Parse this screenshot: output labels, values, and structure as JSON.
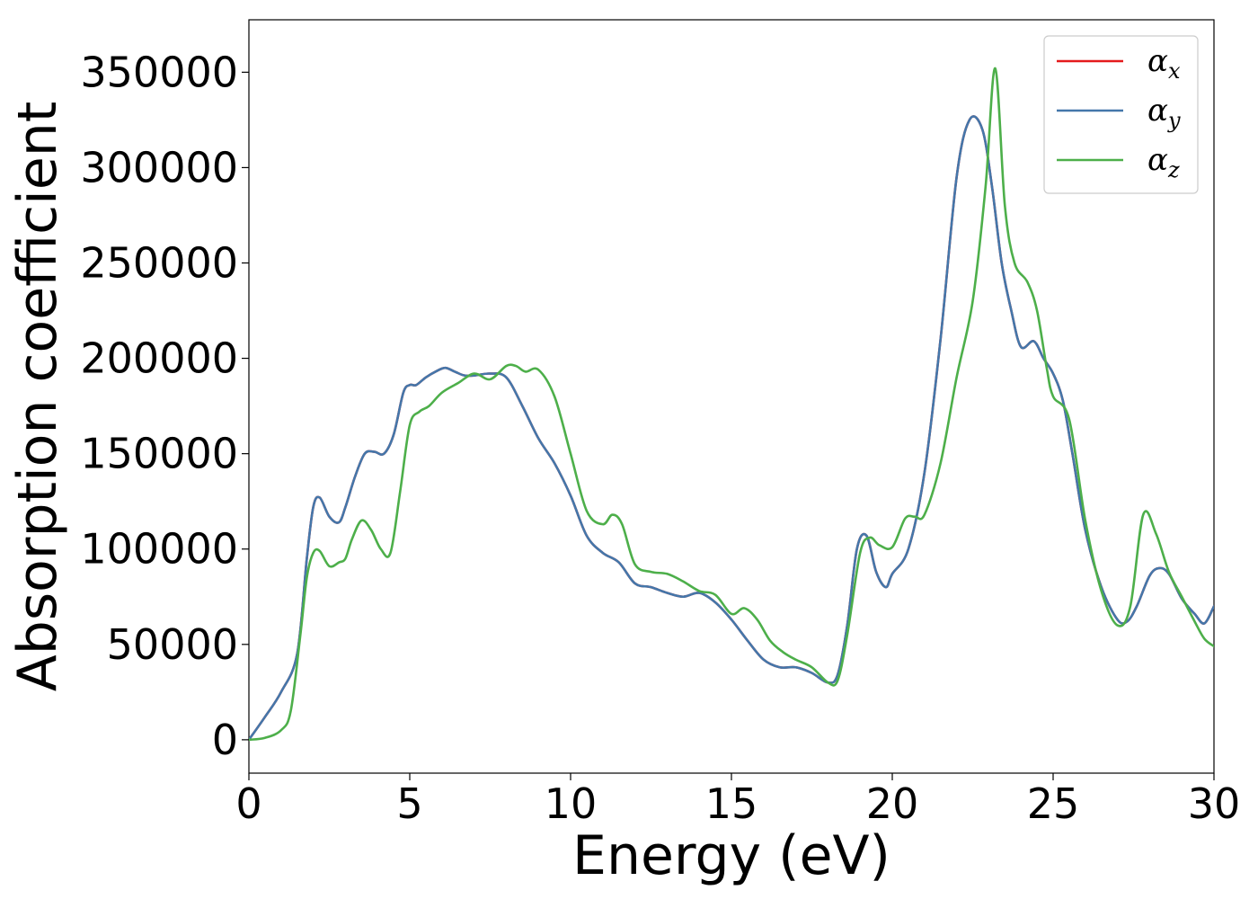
{
  "chart_data": {
    "type": "line",
    "title": "",
    "xlabel": "Energy (eV)",
    "ylabel": "Absorption coefficient",
    "xlim": [
      0,
      30
    ],
    "ylim": [
      -17500,
      377500
    ],
    "xticks": [
      0,
      5,
      10,
      15,
      20,
      25,
      30
    ],
    "xtick_labels": [
      "0",
      "5",
      "10",
      "15",
      "20",
      "25",
      "30"
    ],
    "yticks": [
      0,
      50000,
      100000,
      150000,
      200000,
      250000,
      300000,
      350000
    ],
    "ytick_labels": [
      "0",
      "50000",
      "100000",
      "150000",
      "200000",
      "250000",
      "300000",
      "350000"
    ],
    "grid": false,
    "legend_position": "top-right",
    "series": [
      {
        "name": "αx",
        "legend_base": "α",
        "legend_sub": "x",
        "color": "#e41a1c",
        "x": [
          0,
          0.5,
          1.0,
          1.5,
          1.8,
          2.0,
          2.2,
          2.5,
          2.8,
          3.0,
          3.3,
          3.6,
          3.9,
          4.2,
          4.5,
          4.8,
          5.0,
          5.2,
          5.5,
          5.8,
          6.1,
          6.4,
          6.7,
          7.0,
          7.5,
          8.0,
          8.5,
          9.0,
          9.5,
          10.0,
          10.5,
          11.0,
          11.5,
          12.0,
          12.5,
          13.0,
          13.5,
          14.0,
          14.5,
          15.0,
          15.5,
          16.0,
          16.5,
          17.0,
          17.5,
          18.0,
          18.3,
          18.6,
          18.9,
          19.2,
          19.5,
          19.8,
          20.0,
          20.5,
          21.0,
          21.5,
          22.0,
          22.4,
          22.8,
          23.1,
          23.4,
          23.7,
          24.0,
          24.4,
          24.7,
          25.0,
          25.3,
          25.6,
          26.0,
          26.5,
          27.0,
          27.3,
          27.6,
          28.0,
          28.3,
          28.6,
          29.0,
          29.4,
          29.7,
          30.0
        ],
        "values": [
          0,
          12000,
          25000,
          45000,
          95000,
          122000,
          127000,
          117000,
          114000,
          122000,
          138000,
          150000,
          151000,
          150000,
          160000,
          182000,
          186000,
          186000,
          190000,
          193000,
          195000,
          193000,
          191000,
          191000,
          192000,
          190000,
          175000,
          158000,
          145000,
          128000,
          107000,
          98000,
          93000,
          82000,
          80000,
          77000,
          75000,
          77000,
          72000,
          63000,
          52000,
          42000,
          38000,
          38000,
          35000,
          30000,
          34000,
          60000,
          100000,
          107000,
          88000,
          80000,
          87000,
          100000,
          140000,
          210000,
          295000,
          325000,
          320000,
          290000,
          250000,
          225000,
          206000,
          209000,
          200000,
          192000,
          178000,
          150000,
          110000,
          80000,
          63000,
          62000,
          70000,
          86000,
          90000,
          87000,
          74000,
          66000,
          61000,
          70000
        ]
      },
      {
        "name": "αy",
        "legend_base": "α",
        "legend_sub": "y",
        "color": "#4477aa",
        "x": [
          0,
          0.5,
          1.0,
          1.5,
          1.8,
          2.0,
          2.2,
          2.5,
          2.8,
          3.0,
          3.3,
          3.6,
          3.9,
          4.2,
          4.5,
          4.8,
          5.0,
          5.2,
          5.5,
          5.8,
          6.1,
          6.4,
          6.7,
          7.0,
          7.5,
          8.0,
          8.5,
          9.0,
          9.5,
          10.0,
          10.5,
          11.0,
          11.5,
          12.0,
          12.5,
          13.0,
          13.5,
          14.0,
          14.5,
          15.0,
          15.5,
          16.0,
          16.5,
          17.0,
          17.5,
          18.0,
          18.3,
          18.6,
          18.9,
          19.2,
          19.5,
          19.8,
          20.0,
          20.5,
          21.0,
          21.5,
          22.0,
          22.4,
          22.8,
          23.1,
          23.4,
          23.7,
          24.0,
          24.4,
          24.7,
          25.0,
          25.3,
          25.6,
          26.0,
          26.5,
          27.0,
          27.3,
          27.6,
          28.0,
          28.3,
          28.6,
          29.0,
          29.4,
          29.7,
          30.0
        ],
        "values": [
          0,
          12000,
          25000,
          45000,
          95000,
          122000,
          127000,
          117000,
          114000,
          122000,
          138000,
          150000,
          151000,
          150000,
          160000,
          182000,
          186000,
          186000,
          190000,
          193000,
          195000,
          193000,
          191000,
          191000,
          192000,
          190000,
          175000,
          158000,
          145000,
          128000,
          107000,
          98000,
          93000,
          82000,
          80000,
          77000,
          75000,
          77000,
          72000,
          63000,
          52000,
          42000,
          38000,
          38000,
          35000,
          30000,
          34000,
          60000,
          100000,
          107000,
          88000,
          80000,
          87000,
          100000,
          140000,
          210000,
          295000,
          325000,
          320000,
          290000,
          250000,
          225000,
          206000,
          209000,
          200000,
          192000,
          178000,
          150000,
          110000,
          80000,
          63000,
          62000,
          70000,
          86000,
          90000,
          87000,
          74000,
          66000,
          61000,
          70000
        ]
      },
      {
        "name": "αz",
        "legend_base": "α",
        "legend_sub": "z",
        "color": "#4daf4a",
        "x": [
          0,
          0.5,
          1.0,
          1.3,
          1.6,
          1.8,
          2.0,
          2.2,
          2.5,
          2.8,
          3.0,
          3.2,
          3.5,
          3.8,
          4.1,
          4.4,
          4.7,
          5.0,
          5.3,
          5.6,
          6.0,
          6.5,
          7.0,
          7.5,
          8.0,
          8.3,
          8.6,
          9.0,
          9.5,
          10.0,
          10.5,
          11.0,
          11.3,
          11.6,
          12.0,
          12.5,
          13.0,
          13.5,
          14.0,
          14.5,
          15.0,
          15.4,
          15.8,
          16.2,
          16.6,
          17.0,
          17.5,
          18.0,
          18.3,
          18.6,
          19.0,
          19.3,
          19.6,
          20.0,
          20.4,
          20.7,
          21.0,
          21.5,
          22.0,
          22.5,
          22.9,
          23.2,
          23.5,
          23.8,
          24.2,
          24.5,
          24.8,
          25.0,
          25.5,
          26.0,
          26.5,
          27.0,
          27.4,
          27.8,
          28.2,
          28.6,
          29.0,
          29.4,
          29.7,
          30.0
        ],
        "values": [
          0,
          1000,
          5000,
          15000,
          55000,
          85000,
          98000,
          99000,
          91000,
          93000,
          95000,
          105000,
          115000,
          110000,
          100000,
          98000,
          130000,
          165000,
          172000,
          175000,
          182000,
          187000,
          192000,
          189000,
          196000,
          196000,
          193000,
          194000,
          180000,
          150000,
          120000,
          113000,
          118000,
          113000,
          92000,
          88000,
          87000,
          83000,
          78000,
          76000,
          66000,
          69000,
          63000,
          52000,
          46000,
          42000,
          38000,
          30000,
          31000,
          55000,
          98000,
          106000,
          102000,
          101000,
          116000,
          117000,
          118000,
          145000,
          190000,
          230000,
          290000,
          352000,
          280000,
          250000,
          240000,
          225000,
          195000,
          180000,
          168000,
          115000,
          78000,
          60000,
          70000,
          118000,
          108000,
          88000,
          75000,
          62000,
          53000,
          49000
        ]
      }
    ]
  }
}
